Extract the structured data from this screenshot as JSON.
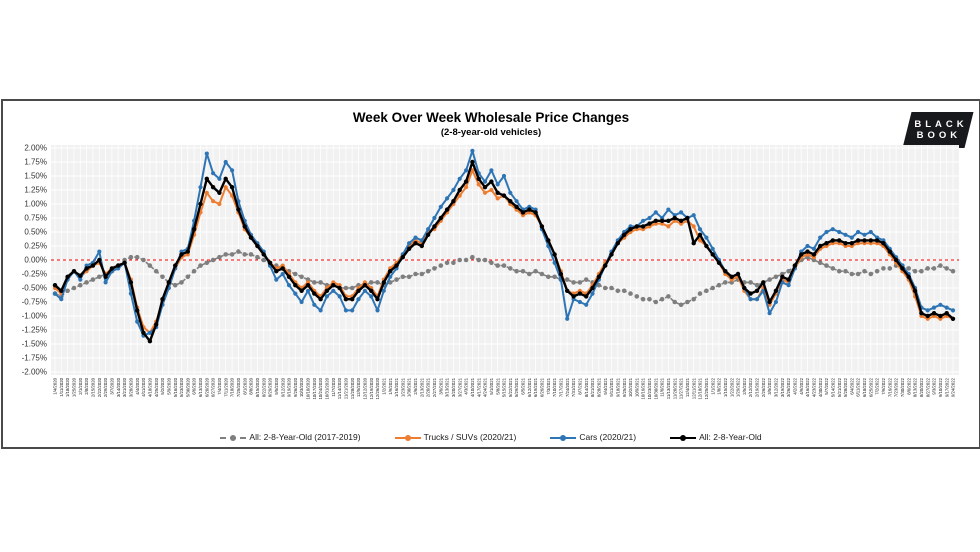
{
  "header": {
    "title": "Week Over Week Wholesale Price Changes",
    "subtitle": "(2-8-year-old vehicles)"
  },
  "logo": {
    "line1": "BLACK",
    "line2": "BOOK"
  },
  "chart_data": {
    "type": "line",
    "title": "Week Over Week Wholesale Price Changes",
    "subtitle": "(2-8-year-old vehicles)",
    "xlabel": "",
    "ylabel": "",
    "ylim": [
      -2.0,
      2.0
    ],
    "ytick_step": 0.25,
    "grid": true,
    "legend_position": "bottom",
    "plot_bg": "#F1F1F1",
    "grid_color": "#FFFFFF",
    "zero_line_color": "#FF0000",
    "y_ticks": [
      "2.00%",
      "1.75%",
      "1.50%",
      "1.25%",
      "1.00%",
      "0.75%",
      "0.50%",
      "0.25%",
      "0.00%",
      "-0.25%",
      "-0.50%",
      "-0.75%",
      "-1.00%",
      "-1.25%",
      "-1.50%",
      "-1.75%",
      "-2.00%"
    ],
    "categories": [
      "1/4/2020",
      "1/11/2020",
      "1/18/2020",
      "1/25/2020",
      "2/1/2020",
      "2/8/2020",
      "2/15/2020",
      "2/22/2020",
      "2/29/2020",
      "3/7/2020",
      "3/14/2020",
      "3/21/2020",
      "3/28/2020",
      "4/4/2020",
      "4/11/2020",
      "4/18/2020",
      "4/25/2020",
      "5/2/2020",
      "5/9/2020",
      "5/16/2020",
      "5/23/2020",
      "5/30/2020",
      "6/6/2020",
      "6/13/2020",
      "6/20/2020",
      "6/27/2020",
      "7/4/2020",
      "7/11/2020",
      "7/18/2020",
      "7/25/2020",
      "8/1/2020",
      "8/8/2020",
      "8/15/2020",
      "8/22/2020",
      "8/29/2020",
      "9/5/2020",
      "9/12/2020",
      "9/19/2020",
      "9/26/2020",
      "10/3/2020",
      "10/10/2020",
      "10/17/2020",
      "10/24/2020",
      "10/31/2020",
      "11/7/2020",
      "11/14/2020",
      "11/21/2020",
      "11/28/2020",
      "12/5/2020",
      "12/12/2020",
      "12/19/2020",
      "12/26/2020",
      "1/2/2021",
      "1/9/2021",
      "1/16/2021",
      "1/23/2021",
      "1/30/2021",
      "2/6/2021",
      "2/13/2021",
      "2/20/2021",
      "2/27/2021",
      "3/6/2021",
      "3/13/2021",
      "3/20/2021",
      "3/27/2021",
      "4/3/2021",
      "4/10/2021",
      "4/17/2021",
      "4/24/2021",
      "5/1/2021",
      "5/8/2021",
      "5/15/2021",
      "5/22/2021",
      "5/29/2021",
      "6/5/2021",
      "6/12/2021",
      "6/19/2021",
      "6/26/2021",
      "7/3/2021",
      "7/10/2021",
      "7/17/2021",
      "7/24/2021",
      "7/31/2021",
      "8/7/2021",
      "8/14/2021",
      "8/21/2021",
      "8/28/2021",
      "9/4/2021",
      "9/11/2021",
      "9/18/2021",
      "9/25/2021",
      "10/2/2021",
      "10/9/2021",
      "10/16/2021",
      "10/23/2021",
      "10/30/2021",
      "11/6/2021",
      "11/13/2021",
      "11/20/2021",
      "11/27/2021",
      "12/4/2021",
      "12/11/2021",
      "12/18/2021",
      "12/25/2021",
      "1/1/2022",
      "1/8/2022",
      "1/15/2022",
      "1/22/2022",
      "1/29/2022",
      "2/5/2022",
      "2/12/2022",
      "2/19/2022",
      "2/26/2022",
      "3/5/2022",
      "3/12/2022",
      "3/19/2022",
      "3/26/2022",
      "4/2/2022",
      "4/9/2022",
      "4/16/2022",
      "4/23/2022",
      "4/30/2022",
      "5/7/2022",
      "5/14/2022",
      "5/21/2022",
      "5/28/2022",
      "6/4/2022",
      "6/11/2022",
      "6/18/2022",
      "6/25/2022",
      "7/2/2022",
      "7/9/2022",
      "7/16/2022",
      "7/23/2022",
      "7/30/2022",
      "8/6/2022",
      "8/13/2022",
      "8/20/2022",
      "8/27/2022",
      "9/3/2022",
      "9/10/2022",
      "9/17/2022",
      "9/24/2022"
    ],
    "series": [
      {
        "name": "All: 2-8-Year-Old (2017-2019)",
        "color": "#7F7F7F",
        "style": "dashed",
        "values": [
          -0.6,
          -0.65,
          -0.55,
          -0.5,
          -0.45,
          -0.4,
          -0.35,
          -0.3,
          -0.25,
          -0.2,
          -0.1,
          0.0,
          0.05,
          0.05,
          0.0,
          -0.1,
          -0.2,
          -0.3,
          -0.4,
          -0.45,
          -0.4,
          -0.3,
          -0.2,
          -0.1,
          -0.05,
          0.0,
          0.05,
          0.1,
          0.1,
          0.15,
          0.1,
          0.1,
          0.05,
          0.0,
          -0.05,
          -0.1,
          -0.15,
          -0.2,
          -0.25,
          -0.3,
          -0.35,
          -0.4,
          -0.4,
          -0.45,
          -0.45,
          -0.5,
          -0.5,
          -0.5,
          -0.45,
          -0.45,
          -0.4,
          -0.4,
          -0.45,
          -0.4,
          -0.35,
          -0.3,
          -0.3,
          -0.25,
          -0.25,
          -0.2,
          -0.15,
          -0.1,
          -0.05,
          -0.05,
          0.0,
          0.0,
          0.05,
          0.0,
          0.0,
          -0.05,
          -0.1,
          -0.1,
          -0.15,
          -0.2,
          -0.2,
          -0.25,
          -0.2,
          -0.25,
          -0.3,
          -0.3,
          -0.35,
          -0.35,
          -0.4,
          -0.4,
          -0.35,
          -0.4,
          -0.45,
          -0.5,
          -0.5,
          -0.55,
          -0.55,
          -0.6,
          -0.65,
          -0.7,
          -0.7,
          -0.75,
          -0.7,
          -0.65,
          -0.75,
          -0.8,
          -0.75,
          -0.7,
          -0.6,
          -0.55,
          -0.5,
          -0.45,
          -0.4,
          -0.4,
          -0.35,
          -0.4,
          -0.4,
          -0.45,
          -0.4,
          -0.35,
          -0.3,
          -0.25,
          -0.2,
          -0.1,
          0.0,
          0.05,
          0.0,
          -0.05,
          -0.1,
          -0.15,
          -0.2,
          -0.2,
          -0.25,
          -0.25,
          -0.2,
          -0.25,
          -0.2,
          -0.15,
          -0.15,
          -0.1,
          -0.1,
          -0.15,
          -0.2,
          -0.2,
          -0.15,
          -0.15,
          -0.1,
          -0.15,
          -0.2
        ]
      },
      {
        "name": "Trucks / SUVs (2020/21)",
        "color": "#ED7D31",
        "style": "solid",
        "values": [
          -0.5,
          -0.6,
          -0.3,
          -0.2,
          -0.3,
          -0.2,
          -0.1,
          -0.05,
          -0.25,
          -0.15,
          -0.1,
          -0.05,
          -0.35,
          -0.85,
          -1.2,
          -1.3,
          -1.1,
          -0.75,
          -0.5,
          -0.15,
          0.05,
          0.1,
          0.45,
          0.85,
          1.2,
          1.05,
          1.0,
          1.3,
          1.15,
          0.85,
          0.55,
          0.4,
          0.25,
          0.1,
          -0.05,
          -0.15,
          -0.1,
          -0.25,
          -0.4,
          -0.5,
          -0.4,
          -0.55,
          -0.65,
          -0.5,
          -0.4,
          -0.45,
          -0.65,
          -0.65,
          -0.5,
          -0.4,
          -0.5,
          -0.65,
          -0.35,
          -0.15,
          -0.05,
          0.1,
          0.25,
          0.35,
          0.3,
          0.5,
          0.55,
          0.7,
          0.85,
          1.0,
          1.15,
          1.3,
          1.6,
          1.35,
          1.2,
          1.25,
          1.1,
          1.15,
          1.0,
          0.9,
          0.8,
          0.85,
          0.8,
          0.6,
          0.35,
          0.1,
          -0.2,
          -0.55,
          -0.6,
          -0.55,
          -0.6,
          -0.45,
          -0.25,
          -0.05,
          0.1,
          0.3,
          0.4,
          0.5,
          0.55,
          0.55,
          0.6,
          0.65,
          0.65,
          0.6,
          0.7,
          0.65,
          0.7,
          0.6,
          0.35,
          0.25,
          0.1,
          -0.05,
          -0.25,
          -0.35,
          -0.3,
          -0.55,
          -0.7,
          -0.7,
          -0.5,
          -0.8,
          -0.6,
          -0.35,
          -0.4,
          -0.15,
          0.05,
          0.1,
          0.05,
          0.2,
          0.25,
          0.3,
          0.3,
          0.25,
          0.25,
          0.3,
          0.3,
          0.3,
          0.3,
          0.25,
          0.1,
          -0.05,
          -0.2,
          -0.35,
          -0.65,
          -1.0,
          -1.05,
          -1.0,
          -1.05,
          -1.0,
          -1.05
        ]
      },
      {
        "name": "Cars (2020/21)",
        "color": "#2E75B6",
        "style": "solid",
        "values": [
          -0.6,
          -0.7,
          -0.35,
          -0.2,
          -0.35,
          -0.1,
          -0.05,
          0.15,
          -0.4,
          -0.2,
          -0.15,
          -0.05,
          -0.6,
          -1.1,
          -1.35,
          -1.3,
          -1.2,
          -0.8,
          -0.5,
          -0.15,
          0.15,
          0.2,
          0.7,
          1.3,
          1.9,
          1.55,
          1.45,
          1.75,
          1.6,
          1.05,
          0.7,
          0.45,
          0.3,
          0.15,
          -0.1,
          -0.35,
          -0.25,
          -0.45,
          -0.6,
          -0.75,
          -0.55,
          -0.8,
          -0.9,
          -0.65,
          -0.55,
          -0.65,
          -0.9,
          -0.9,
          -0.7,
          -0.55,
          -0.65,
          -0.9,
          -0.55,
          -0.3,
          -0.15,
          0.1,
          0.3,
          0.4,
          0.35,
          0.55,
          0.75,
          0.95,
          1.1,
          1.25,
          1.45,
          1.6,
          1.95,
          1.55,
          1.4,
          1.6,
          1.35,
          1.5,
          1.2,
          1.05,
          0.9,
          0.95,
          0.9,
          0.55,
          0.25,
          -0.05,
          -0.35,
          -1.05,
          -0.7,
          -0.75,
          -0.8,
          -0.6,
          -0.35,
          -0.1,
          0.15,
          0.35,
          0.5,
          0.6,
          0.6,
          0.7,
          0.75,
          0.85,
          0.75,
          0.9,
          0.8,
          0.85,
          0.75,
          0.8,
          0.55,
          0.4,
          0.2,
          0.0,
          -0.2,
          -0.3,
          -0.25,
          -0.5,
          -0.7,
          -0.7,
          -0.55,
          -0.95,
          -0.75,
          -0.4,
          -0.45,
          -0.15,
          0.15,
          0.25,
          0.2,
          0.4,
          0.5,
          0.55,
          0.5,
          0.45,
          0.4,
          0.5,
          0.45,
          0.5,
          0.4,
          0.35,
          0.2,
          0.05,
          -0.1,
          -0.25,
          -0.5,
          -0.85,
          -0.9,
          -0.85,
          -0.8,
          -0.85,
          -0.9
        ]
      },
      {
        "name": "All: 2-8-Year-Old",
        "color": "#000000",
        "style": "solid",
        "values": [
          -0.45,
          -0.55,
          -0.3,
          -0.2,
          -0.28,
          -0.15,
          -0.1,
          0.0,
          -0.3,
          -0.15,
          -0.1,
          -0.05,
          -0.4,
          -0.9,
          -1.3,
          -1.45,
          -1.15,
          -0.7,
          -0.4,
          -0.1,
          0.1,
          0.15,
          0.55,
          1.0,
          1.45,
          1.3,
          1.2,
          1.45,
          1.3,
          0.9,
          0.6,
          0.4,
          0.25,
          0.1,
          -0.05,
          -0.2,
          -0.15,
          -0.3,
          -0.45,
          -0.55,
          -0.45,
          -0.6,
          -0.7,
          -0.55,
          -0.45,
          -0.5,
          -0.7,
          -0.7,
          -0.55,
          -0.45,
          -0.55,
          -0.7,
          -0.4,
          -0.2,
          -0.1,
          0.05,
          0.2,
          0.3,
          0.25,
          0.45,
          0.6,
          0.75,
          0.9,
          1.05,
          1.25,
          1.4,
          1.75,
          1.45,
          1.3,
          1.4,
          1.2,
          1.15,
          1.05,
          0.95,
          0.85,
          0.9,
          0.85,
          0.6,
          0.35,
          0.1,
          -0.25,
          -0.55,
          -0.65,
          -0.6,
          -0.65,
          -0.5,
          -0.3,
          -0.1,
          0.1,
          0.3,
          0.45,
          0.55,
          0.6,
          0.6,
          0.65,
          0.7,
          0.7,
          0.7,
          0.75,
          0.7,
          0.75,
          0.3,
          0.45,
          0.25,
          0.1,
          -0.05,
          -0.2,
          -0.3,
          -0.25,
          -0.5,
          -0.6,
          -0.55,
          -0.4,
          -0.75,
          -0.55,
          -0.3,
          -0.35,
          -0.1,
          0.1,
          0.15,
          0.1,
          0.25,
          0.3,
          0.35,
          0.35,
          0.3,
          0.3,
          0.35,
          0.35,
          0.35,
          0.35,
          0.3,
          0.15,
          0.0,
          -0.15,
          -0.3,
          -0.55,
          -0.95,
          -1.0,
          -0.95,
          -1.0,
          -0.95,
          -1.05
        ]
      }
    ]
  }
}
